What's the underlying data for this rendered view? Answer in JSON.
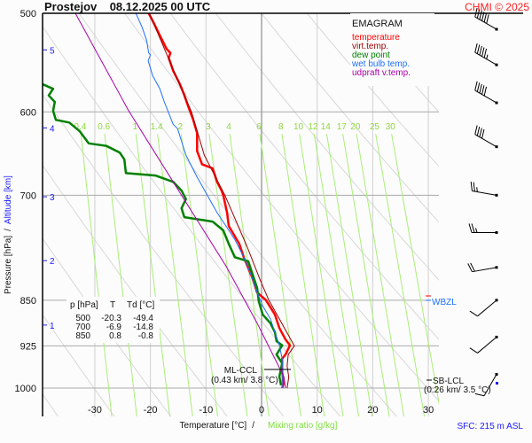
{
  "title": "Prostejov    08.12.2025 00 UTC",
  "copyright": "CHMI © 2025",
  "legend": {
    "heading": "EMAGRAM",
    "items": [
      {
        "label": "temperature",
        "color": "#ff0000"
      },
      {
        "label": "virt.temp.",
        "color": "#990000"
      },
      {
        "label": "dew point",
        "color": "#008000"
      },
      {
        "label": "wet bulb temp.",
        "color": "#1e6fff"
      },
      {
        "label": "udpraft v.temp.",
        "color": "#aa00aa"
      }
    ]
  },
  "table": {
    "headers": [
      "p [hPa]",
      "T",
      "Td [°C]"
    ],
    "rows": [
      [
        "500",
        "-20.3",
        "-49.4"
      ],
      [
        "700",
        "-6.9",
        "-14.8"
      ],
      [
        "850",
        "0.8",
        "-0.8"
      ]
    ]
  },
  "annotations": {
    "ml_ccl": "ML-CCL",
    "ml_ccl_value": "(0.43 km/ 3.8 °C)",
    "sb_lcl": "SB-LCL",
    "sb_lcl_value": "(0.26 km/ 3.5 °C)",
    "wbzl": "WBZL",
    "sfc": "SFC: 215 m ASL"
  },
  "chart_data": {
    "type": "line",
    "subtype": "emagram",
    "xlabel": "Temperature [°C]",
    "xlabel_sep": "/",
    "xlabel2": "Mixing ratio [g/kg]",
    "ylabel": "Pressure [hPa]",
    "ylabel_sep": "/",
    "ylabel2": "Altitude [km]",
    "xlim": [
      -39.4,
      31.9
    ],
    "ylim": [
      1000,
      500
    ],
    "y_scale": "log",
    "x_ticks": [
      "-30",
      "-20",
      "-10",
      "0",
      "10",
      "20",
      "30"
    ],
    "y_ticks": [
      "500",
      "600",
      "700",
      "850",
      "925",
      "1000"
    ],
    "altitude_ticks": [
      "1",
      "2",
      "3",
      "4",
      "5"
    ],
    "altitude_tick_pressures": [
      890,
      790,
      702,
      618,
      535
    ],
    "mixing_ratio_labels": [
      "0.4",
      "0.6",
      "1",
      "1.4",
      "2",
      "3",
      "4",
      "6",
      "8",
      "10",
      "12",
      "14",
      "17",
      "20",
      "25",
      "30"
    ],
    "series": [
      {
        "name": "temperature",
        "color": "#ff0000",
        "p": [
          500,
          508,
          521,
          534,
          538,
          543,
          556,
          570,
          580,
          594,
          609,
          624,
          645,
          661,
          666,
          683,
          694,
          700,
          723,
          741,
          766,
          785,
          817,
          838,
          850,
          873,
          895,
          914,
          924,
          940,
          947,
          971,
          990,
          1000
        ],
        "t": [
          -20.3,
          -19.5,
          -18.3,
          -17.1,
          -16.4,
          -16.7,
          -15.9,
          -14.7,
          -14.0,
          -13.2,
          -12.3,
          -11.6,
          -11.6,
          -10.7,
          -8.8,
          -8.0,
          -7.2,
          -6.9,
          -6.2,
          -5.9,
          -4.0,
          -3.2,
          -1.6,
          -0.8,
          0.8,
          2.4,
          3.2,
          4.3,
          5.1,
          4.3,
          3.7,
          3.7,
          4.0,
          3.7
        ]
      },
      {
        "name": "virt.temp.",
        "color": "#990000",
        "p": [
          500,
          560,
          600,
          650,
          700,
          770,
          820,
          850,
          880,
          910,
          925,
          940,
          960,
          980,
          1000
        ],
        "t": [
          -20.2,
          -15.5,
          -12.6,
          -10.3,
          -6.6,
          -2.6,
          -0.2,
          1.3,
          3.2,
          5.0,
          5.9,
          4.8,
          4.6,
          4.9,
          4.6
        ]
      },
      {
        "name": "dew point",
        "color": "#008000",
        "p": [
          570,
          575,
          582,
          589,
          599,
          609,
          612,
          622,
          636,
          639,
          647,
          655,
          672,
          675,
          683,
          694,
          705,
          717,
          729,
          735,
          747,
          766,
          785,
          791,
          811,
          831,
          852,
          873,
          887,
          902,
          917,
          924,
          940,
          955,
          979,
          995
        ],
        "t": [
          -39.4,
          -37.5,
          -38.3,
          -37.2,
          -37.5,
          -37.0,
          -34.6,
          -32.7,
          -31.1,
          -27.9,
          -25.5,
          -24.7,
          -24.4,
          -19.1,
          -15.9,
          -14.4,
          -13.6,
          -14.4,
          -13.9,
          -8.8,
          -6.9,
          -5.9,
          -4.8,
          -2.4,
          -1.6,
          -0.8,
          -0.5,
          0.2,
          1.6,
          2.4,
          2.7,
          3.7,
          2.7,
          3.7,
          3.2,
          3.5
        ]
      },
      {
        "name": "wet bulb temp.",
        "color": "#1e6fff",
        "p": [
          500,
          513,
          525,
          538,
          540,
          546,
          561,
          575,
          589,
          614,
          619,
          650,
          677,
          702,
          723,
          741,
          760,
          785,
          811,
          838,
          859,
          880,
          902,
          924,
          947,
          1000
        ],
        "t": [
          -22.6,
          -21.5,
          -20.7,
          -20.3,
          -20.0,
          -20.4,
          -19.6,
          -18.3,
          -17.5,
          -15.9,
          -15.1,
          -13.6,
          -11.6,
          -9.6,
          -8.0,
          -6.4,
          -4.8,
          -3.2,
          -1.9,
          -0.8,
          0.2,
          1.6,
          2.4,
          3.2,
          3.7,
          3.7
        ]
      },
      {
        "name": "udpraft v.temp.",
        "color": "#aa00aa",
        "p": [
          500,
          599,
          700,
          798,
          887,
          979,
          1000
        ],
        "t": [
          -33.5,
          -23.9,
          -14.4,
          -6.4,
          -0.8,
          4.0,
          4.3
        ]
      }
    ],
    "wind_barbs": [
      {
        "p": 515,
        "dir": 300,
        "kt": 60
      },
      {
        "p": 550,
        "dir": 300,
        "kt": 55
      },
      {
        "p": 590,
        "dir": 300,
        "kt": 50
      },
      {
        "p": 640,
        "dir": 300,
        "kt": 40
      },
      {
        "p": 700,
        "dir": 280,
        "kt": 25
      },
      {
        "p": 750,
        "dir": 270,
        "kt": 25
      },
      {
        "p": 800,
        "dir": 260,
        "kt": 20
      },
      {
        "p": 850,
        "dir": 230,
        "kt": 10
      },
      {
        "p": 910,
        "dir": 230,
        "kt": 10
      },
      {
        "p": 975,
        "dir": 210,
        "kt": 10
      }
    ]
  }
}
